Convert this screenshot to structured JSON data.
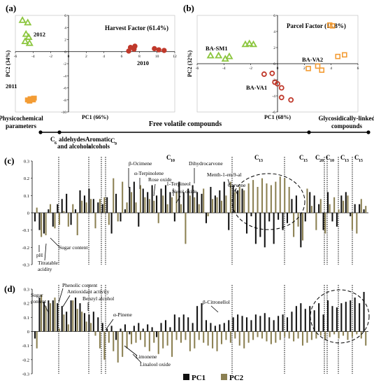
{
  "chart_data": [
    {
      "panel": "a",
      "type": "scatter",
      "label": "(a)",
      "title": "Harvest Factor (61.4%)",
      "xlabel": "PC1 (66%)",
      "ylabel": "PC2 (34%)",
      "xlim": [
        -6,
        12
      ],
      "ylim": [
        -10,
        6
      ],
      "xticks": [
        -6,
        -4,
        -2,
        0,
        2,
        4,
        6,
        8,
        10,
        12
      ],
      "yticks": [
        6,
        4,
        2,
        0,
        -2,
        -4,
        -6,
        -8,
        -10
      ],
      "groups": [
        {
          "label": "2012",
          "marker": "triangle",
          "color": "#8cc63f",
          "points": [
            [
              -5.2,
              5.2
            ],
            [
              -4.6,
              4.8
            ],
            [
              -4.8,
              2.9
            ],
            [
              -4.5,
              2.4
            ],
            [
              -4.9,
              1.7
            ],
            [
              -4.4,
              1.4
            ]
          ]
        },
        {
          "label": "2010",
          "marker": "circle",
          "color": "#c0392b",
          "points": [
            [
              7.0,
              0.7
            ],
            [
              7.4,
              0.4
            ],
            [
              7.5,
              0.9
            ],
            [
              6.8,
              0.1
            ],
            [
              9.7,
              0.5
            ],
            [
              10.2,
              0.3
            ],
            [
              10.8,
              0.2
            ]
          ]
        },
        {
          "label": "2011",
          "marker": "square",
          "color": "#f39c34",
          "points": [
            [
              -4.6,
              -8.0
            ],
            [
              -4.0,
              -8.0
            ],
            [
              -4.3,
              -7.8
            ],
            [
              -3.9,
              -7.7
            ],
            [
              -4.4,
              -8.2
            ],
            [
              -4.1,
              -7.9
            ]
          ]
        }
      ]
    },
    {
      "panel": "b",
      "type": "scatter",
      "label": "(b)",
      "title": "Parcel Factor (14.8%)",
      "xlabel": "PC1 (68%)",
      "ylabel": "PC2 (32%)",
      "xlim": [
        -6,
        6
      ],
      "ylim": [
        -6,
        6
      ],
      "xticks": [
        -6,
        -4,
        -2,
        0,
        2,
        4,
        6
      ],
      "yticks": [
        6,
        4,
        2,
        0,
        -2,
        -4,
        -6
      ],
      "groups": [
        {
          "label": "BA-SM1",
          "marker": "triangle",
          "color": "#8cc63f",
          "points": [
            [
              -5.0,
              1.0
            ],
            [
              -4.4,
              1.0
            ],
            [
              -3.9,
              0.6
            ],
            [
              -3.6,
              0.9
            ],
            [
              -2.4,
              2.4
            ],
            [
              -2.1,
              2.5
            ],
            [
              -1.8,
              2.4
            ]
          ]
        },
        {
          "label": "BA-VA2",
          "marker": "square",
          "color": "#f39c34",
          "points": [
            [
              3.9,
              4.8
            ],
            [
              4.1,
              4.7
            ],
            [
              2.3,
              -0.6
            ],
            [
              3.0,
              -0.3
            ],
            [
              3.3,
              -0.8
            ],
            [
              4.5,
              0.9
            ],
            [
              5.0,
              1.1
            ]
          ]
        },
        {
          "label": "BA-VA1",
          "marker": "circle",
          "color": "#c0392b",
          "points": [
            [
              -1.0,
              -1.3
            ],
            [
              -0.4,
              -1.2
            ],
            [
              -0.2,
              -2.3
            ],
            [
              0.0,
              -2.5
            ],
            [
              0.3,
              -3.0
            ],
            [
              0.3,
              -4.2
            ],
            [
              1.0,
              -4.5
            ]
          ]
        }
      ]
    },
    {
      "panel": "c",
      "type": "bar",
      "label": "(c)",
      "ylim": [
        -0.3,
        0.3
      ],
      "yticks": [
        "0.3",
        "0.2",
        "0.1",
        "0",
        "-0.1",
        "-0.2",
        "-0.3"
      ],
      "series": [
        {
          "name": "PC1",
          "color": "#111111",
          "values": [
            -0.05,
            -0.1,
            -0.12,
            0.02,
            -0.08,
            0.05,
            0.08,
            0.11,
            -0.07,
            0.02,
            0.13,
            0.1,
            0.14,
            0.08,
            0.06,
            0.05,
            0.09,
            -0.12,
            0.11,
            -0.05,
            0.02,
            0.15,
            0.18,
            -0.08,
            0.14,
            0.12,
            0.16,
            0.1,
            0.14,
            0.16,
            0.12,
            -0.05,
            0.18,
            0.12,
            0.14,
            0.16,
            0.12,
            0.11,
            -0.06,
            0.15,
            0.1,
            0.13,
            0.18,
            -0.1,
            0.16,
            0.13,
            0.14,
            -0.12,
            -0.02,
            -0.18,
            -0.14,
            -0.2,
            -0.05,
            -0.18,
            -0.04,
            -0.1,
            -0.06,
            0.08,
            0.1,
            -0.2,
            -0.05,
            0.12,
            0.1,
            0.05,
            -0.1,
            0.12,
            -0.05,
            -0.08,
            0.1,
            0.12,
            -0.02,
            0.05,
            0.05,
            0.02
          ]
        },
        {
          "name": "PC2",
          "color": "#8b8052",
          "values": [
            0.03,
            -0.14,
            -0.13,
            0.05,
            -0.09,
            -0.07,
            0.01,
            -0.08,
            0.05,
            -0.13,
            0.07,
            0.06,
            0.08,
            -0.09,
            0.08,
            0.09,
            -0.07,
            0.2,
            -0.05,
            0.18,
            0.06,
            0.12,
            0.06,
            0.16,
            0.09,
            0.08,
            0.07,
            -0.06,
            0.1,
            0.05,
            0.09,
            0.12,
            0.05,
            -0.18,
            0.1,
            0.09,
            0.05,
            0.14,
            -0.02,
            0.08,
            0.09,
            0.07,
            0.1,
            0.18,
            0.12,
            0.15,
            0.13,
            0.17,
            0.19,
            0.15,
            0.2,
            0.17,
            0.16,
            0.18,
            0.21,
            0.2,
            0.15,
            -0.14,
            -0.08,
            -0.16,
            0.14,
            0.04,
            -0.1,
            0.08,
            -0.12,
            0.05,
            0.09,
            0.02,
            0.07,
            0.1,
            -0.1,
            -0.12,
            0.08,
            0.04
          ]
        }
      ]
    },
    {
      "panel": "d",
      "type": "bar",
      "label": "(d)",
      "ylim": [
        -0.3,
        0.3
      ],
      "yticks": [
        "0.3",
        "0.2",
        "0.1",
        "0",
        "-0.1",
        "-0.2",
        "-0.3"
      ],
      "series": [
        {
          "name": "PC1",
          "color": "#111111",
          "values": [
            -0.05,
            0.24,
            0.21,
            0.22,
            0.22,
            0.2,
            0.18,
            0.14,
            0.22,
            0.24,
            0.2,
            0.13,
            0.12,
            0.14,
            0.1,
            0.06,
            0.02,
            0.04,
            -0.06,
            0.02,
            0.05,
            -0.02,
            0.04,
            0.06,
            0.02,
            0.05,
            0.03,
            -0.04,
            0.06,
            0.08,
            0.03,
            0.12,
            0.1,
            0.12,
            0.1,
            0.06,
            0.18,
            0.2,
            0.08,
            0.06,
            0.04,
            0.05,
            0.06,
            0.08,
            0.1,
            0.12,
            0.11,
            0.1,
            0.08,
            0.12,
            0.11,
            0.13,
            0.1,
            0.08,
            0.11,
            0.12,
            0.1,
            0.14,
            0.18,
            0.2,
            0.16,
            0.18,
            0.15,
            0.2,
            0.12,
            0.22,
            0.18,
            0.17,
            0.2,
            0.21,
            0.22,
            0.24,
            0.2,
            0.28
          ]
        },
        {
          "name": "PC2",
          "color": "#8b8052",
          "values": [
            -0.12,
            0.26,
            0.18,
            0.2,
            0.24,
            0.02,
            0.12,
            0.05,
            0.22,
            0.16,
            0.14,
            0.07,
            0.06,
            -0.03,
            -0.12,
            -0.2,
            -0.08,
            -0.14,
            -0.22,
            -0.18,
            -0.12,
            -0.09,
            -0.08,
            -0.06,
            -0.11,
            -0.14,
            -0.08,
            -0.16,
            -0.12,
            -0.1,
            -0.18,
            -0.06,
            -0.08,
            -0.06,
            -0.14,
            -0.12,
            -0.06,
            -0.08,
            -0.1,
            -0.12,
            -0.14,
            -0.09,
            -0.06,
            -0.08,
            -0.05,
            -0.1,
            -0.12,
            -0.08,
            -0.06,
            -0.04,
            -0.05,
            -0.07,
            -0.09,
            -0.08,
            -0.06,
            -0.04,
            -0.05,
            -0.07,
            -0.05,
            -0.1,
            -0.08,
            -0.06,
            -0.05,
            -0.03,
            -0.06,
            -0.04,
            -0.02,
            -0.05,
            -0.03,
            -0.06,
            -0.04,
            -0.02,
            -0.05,
            -0.1
          ]
        }
      ]
    }
  ],
  "sections": [
    {
      "label": "Physicochemical parameters"
    },
    {
      "label": "Free volatile compounds"
    },
    {
      "label": "Glycosidically-linked compounds"
    }
  ],
  "groups": [
    {
      "label": "C6 aldehydes and alcohols"
    },
    {
      "label": "Aromatic alcohols"
    },
    {
      "label": "C9"
    },
    {
      "label": "C10"
    },
    {
      "label": "C13"
    },
    {
      "label": "C15"
    },
    {
      "label": "C20"
    },
    {
      "label": "C10"
    },
    {
      "label": "C13"
    },
    {
      "label": "C15"
    }
  ],
  "annotations_c": [
    {
      "text": "β-Ocimene"
    },
    {
      "text": "α-Terpinolene"
    },
    {
      "text": "Rose oxide"
    },
    {
      "text": "Dihydrocarvone"
    },
    {
      "text": "Menth-1-en-9-al"
    },
    {
      "text": "1-Terpineol"
    },
    {
      "text": "Nerol oxide"
    },
    {
      "text": "Carvone"
    },
    {
      "text": "pH"
    },
    {
      "text": "Titratable acidity"
    },
    {
      "text": "Sugar content"
    }
  ],
  "annotations_d": [
    {
      "text": "Phenolic content"
    },
    {
      "text": "Antioxidant activity"
    },
    {
      "text": "Sugar content"
    },
    {
      "text": "Benzyl alcohol"
    },
    {
      "text": "β-Citronellol"
    },
    {
      "text": "α-Pinene"
    },
    {
      "text": "Limonene"
    },
    {
      "text": "Linalool oxide"
    }
  ],
  "legend": [
    {
      "label": "PC1",
      "color": "#111111"
    },
    {
      "label": "PC2",
      "color": "#8b8052"
    }
  ]
}
